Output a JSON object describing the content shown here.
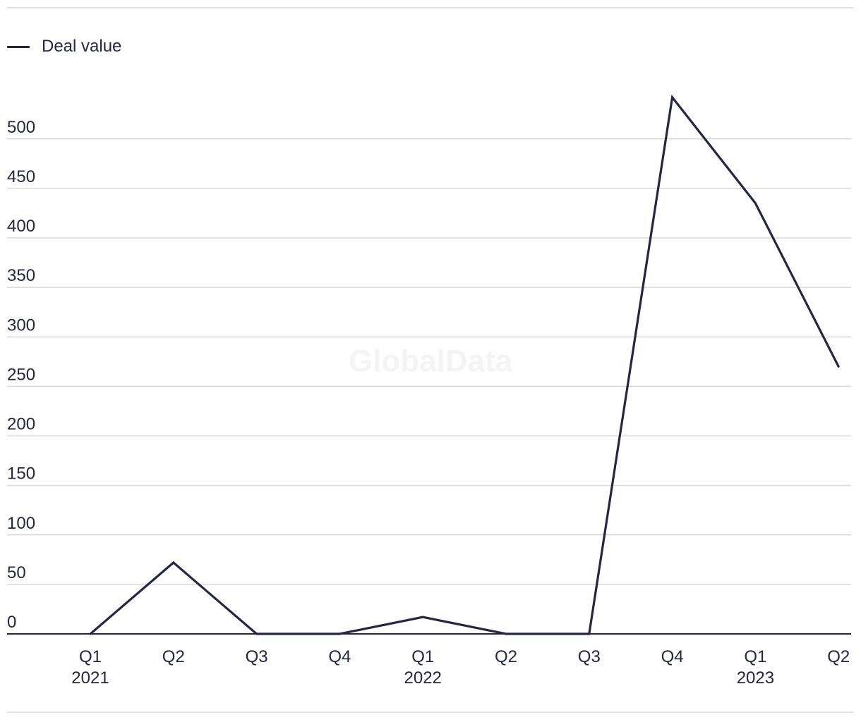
{
  "watermark": "GlobalData",
  "colors": {
    "line": "#262643",
    "grid": "#d9d9d9",
    "axis": "#262643",
    "rule": "#e2e2e2",
    "watermark": "#f4f4f4"
  },
  "chart_data": {
    "type": "line",
    "title": "",
    "xlabel": "",
    "ylabel": "",
    "categories": [
      "Q1 2021",
      "Q2 2021",
      "Q3 2021",
      "Q4 2021",
      "Q1 2022",
      "Q2 2022",
      "Q3 2022",
      "Q4 2022",
      "Q1 2023",
      "Q2 2023"
    ],
    "tick_labels": [
      {
        "quarter": "Q1",
        "year": "2021"
      },
      {
        "quarter": "Q2",
        "year": ""
      },
      {
        "quarter": "Q3",
        "year": ""
      },
      {
        "quarter": "Q4",
        "year": ""
      },
      {
        "quarter": "Q1",
        "year": "2022"
      },
      {
        "quarter": "Q2",
        "year": ""
      },
      {
        "quarter": "Q3",
        "year": ""
      },
      {
        "quarter": "Q4",
        "year": ""
      },
      {
        "quarter": "Q1",
        "year": "2023"
      },
      {
        "quarter": "Q2",
        "year": ""
      }
    ],
    "series": [
      {
        "name": "Deal value",
        "values": [
          0,
          72,
          0,
          0,
          17,
          0,
          0,
          542,
          435,
          270
        ]
      }
    ],
    "yticks": [
      0,
      50,
      100,
      150,
      200,
      250,
      300,
      350,
      400,
      450,
      500
    ],
    "ylim": [
      0,
      550
    ],
    "grid": true,
    "legend": "top-left"
  }
}
